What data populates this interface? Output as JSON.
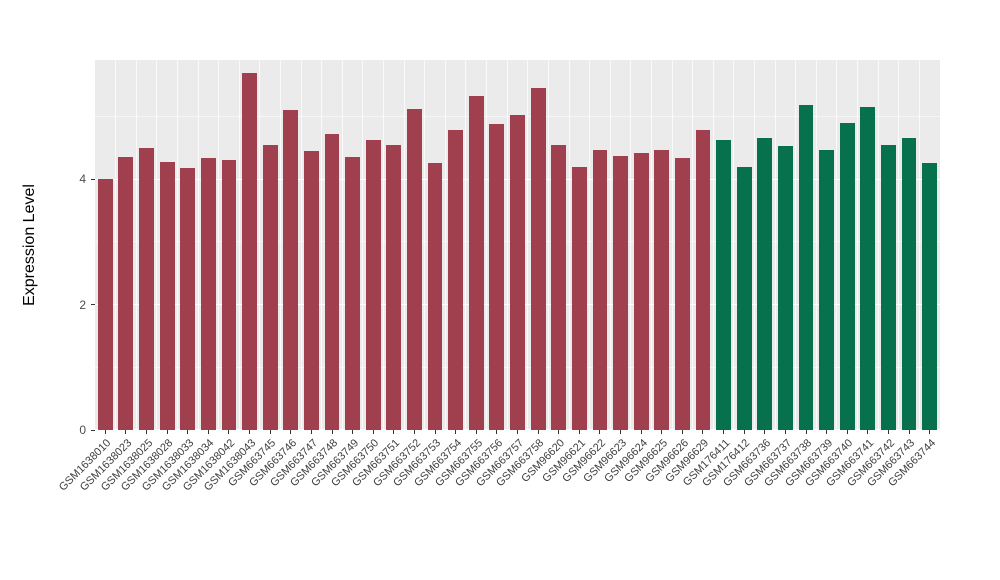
{
  "chart_data": {
    "type": "bar",
    "title": "",
    "xlabel": "",
    "ylabel": "Expression Level",
    "ylim": [
      0,
      5.9
    ],
    "yticks": [
      0,
      2,
      4
    ],
    "minor_yticks": [
      1,
      3,
      5
    ],
    "grid": "on",
    "legend": "none",
    "panel_background": "#EBEBEB",
    "gridline_color": "#FFFFFF",
    "palette": [
      "#A0404E",
      "#07714E"
    ],
    "categories": [
      "GSM1638010",
      "GSM1638023",
      "GSM1638025",
      "GSM1638028",
      "GSM1638033",
      "GSM1638034",
      "GSM1638042",
      "GSM1638043",
      "GSM663745",
      "GSM663746",
      "GSM663747",
      "GSM663748",
      "GSM663749",
      "GSM663750",
      "GSM663751",
      "GSM663752",
      "GSM663753",
      "GSM663754",
      "GSM663755",
      "GSM663756",
      "GSM663757",
      "GSM663758",
      "GSM96620",
      "GSM96621",
      "GSM96622",
      "GSM96623",
      "GSM96624",
      "GSM96625",
      "GSM96626",
      "GSM96629",
      "GSM176411",
      "GSM176412",
      "GSM663736",
      "GSM663737",
      "GSM663738",
      "GSM663739",
      "GSM663740",
      "GSM663741",
      "GSM663742",
      "GSM663743",
      "GSM663744"
    ],
    "series": [
      {
        "name": "Expression Level",
        "values": [
          4.0,
          4.35,
          4.5,
          4.28,
          4.18,
          4.33,
          4.3,
          5.7,
          4.55,
          5.1,
          4.45,
          4.72,
          4.35,
          4.62,
          4.55,
          5.12,
          4.25,
          4.78,
          5.33,
          4.88,
          5.02,
          5.45,
          4.55,
          4.2,
          4.47,
          4.37,
          4.42,
          4.47,
          4.33,
          4.78,
          4.63,
          4.2,
          4.65,
          4.53,
          5.18,
          4.47,
          4.9,
          5.15,
          4.55,
          4.65,
          4.25
        ]
      }
    ],
    "group_index": [
      0,
      0,
      0,
      0,
      0,
      0,
      0,
      0,
      0,
      0,
      0,
      0,
      0,
      0,
      0,
      0,
      0,
      0,
      0,
      0,
      0,
      0,
      0,
      0,
      0,
      0,
      0,
      0,
      0,
      0,
      1,
      1,
      1,
      1,
      1,
      1,
      1,
      1,
      1,
      1,
      1
    ]
  }
}
